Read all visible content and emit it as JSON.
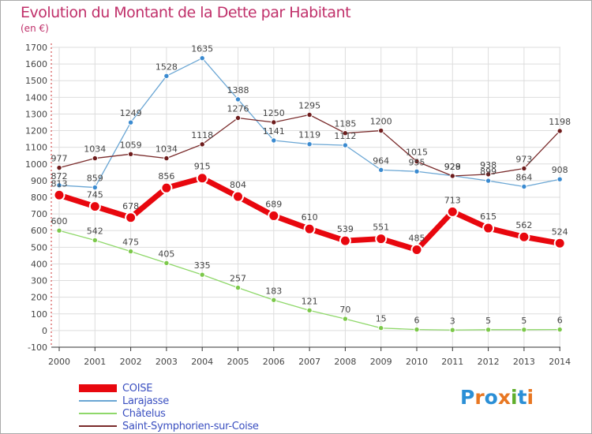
{
  "title": "Evolution du Montant de la Dette par Habitant",
  "subtitle": "(en €)",
  "logo": {
    "text": "Proxiti",
    "letter_colors": [
      "#2b8fd6",
      "#e87722",
      "#2b8fd6",
      "#e87722",
      "#5fae2b",
      "#2b8fd6",
      "#e87722"
    ]
  },
  "chart_data": {
    "type": "line",
    "title": "Evolution du Montant de la Dette par Habitant",
    "ylabel": "(en €)",
    "x": [
      "2000",
      "2001",
      "2002",
      "2003",
      "2004",
      "2005",
      "2006",
      "2007",
      "2008",
      "2009",
      "2010",
      "2011",
      "2012",
      "2013",
      "2014"
    ],
    "ylim": [
      -100,
      1700
    ],
    "yticks": [
      "-100",
      "0",
      "100",
      "200",
      "300",
      "400",
      "500",
      "600",
      "700",
      "800",
      "900",
      "1000",
      "1100",
      "1200",
      "1300",
      "1400",
      "1500",
      "1600",
      "1700"
    ],
    "grid": true,
    "legend_position": "bottom-left",
    "series": [
      {
        "name": "COISE",
        "color": "#e8070e",
        "marker_color": "#e8070e",
        "values": [
          813,
          745,
          678,
          856,
          915,
          804,
          689,
          610,
          539,
          551,
          485,
          713,
          615,
          562,
          524
        ],
        "labels": [
          "813",
          "745",
          "678",
          "856",
          "915",
          "804",
          "689",
          "610",
          "539",
          "551",
          "485",
          "713",
          "615",
          "562",
          "524"
        ]
      },
      {
        "name": "Larajasse",
        "color": "#6aa6d4",
        "marker_color": "#3a8ad0",
        "values": [
          872,
          859,
          1249,
          1528,
          1635,
          1388,
          1141,
          1119,
          1112,
          964,
          955,
          929,
          899,
          864,
          908
        ],
        "labels": [
          "872",
          "859",
          "1249",
          "1528",
          "1635",
          "1388",
          "1141",
          "1119",
          "1112",
          "964",
          "955",
          "929",
          "899",
          "864",
          "908"
        ]
      },
      {
        "name": "Châtelus",
        "color": "#8fd86a",
        "marker_color": "#7cc84a",
        "values": [
          600,
          542,
          475,
          405,
          335,
          257,
          183,
          121,
          70,
          15,
          6,
          3,
          5,
          5,
          6
        ],
        "labels": [
          "600",
          "542",
          "475",
          "405",
          "335",
          "257",
          "183",
          "121",
          "70",
          "15",
          "6",
          "3",
          "5",
          "5",
          "6"
        ]
      },
      {
        "name": "Saint-Symphorien-sur-Coise",
        "color": "#7a2b2b",
        "marker_color": "#6e1c1c",
        "values": [
          977,
          1034,
          1059,
          1034,
          1118,
          1276,
          1250,
          1295,
          1185,
          1200,
          1015,
          928,
          938,
          973,
          1198
        ],
        "labels": [
          "977",
          "1034",
          "1059",
          "1034",
          "1118",
          "1276",
          "1250",
          "1295",
          "1185",
          "1200",
          "1015",
          "928",
          "938",
          "973",
          "1198"
        ]
      }
    ]
  }
}
